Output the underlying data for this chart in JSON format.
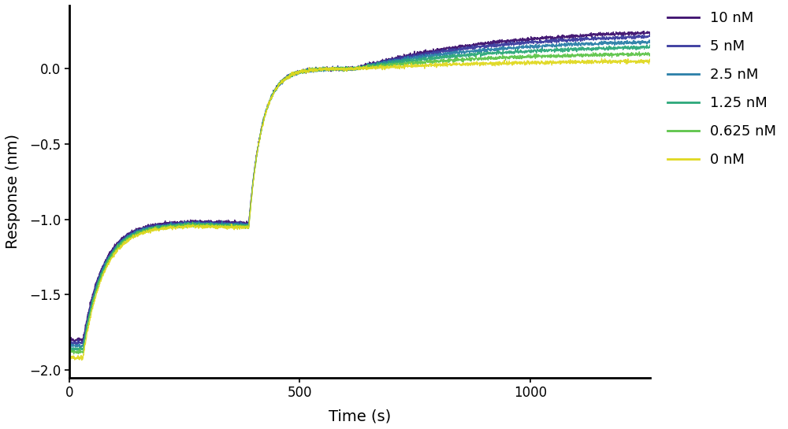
{
  "series": [
    {
      "label": "10 nM",
      "color": "#3d0f6e",
      "final_response": 0.27
    },
    {
      "label": "5 nM",
      "color": "#3a3a9e",
      "final_response": 0.24
    },
    {
      "label": "2.5 nM",
      "color": "#2a7fa8",
      "final_response": 0.2
    },
    {
      "label": "1.25 nM",
      "color": "#2ca87a",
      "final_response": 0.16
    },
    {
      "label": "0.625 nM",
      "color": "#5ec44a",
      "final_response": 0.11
    },
    {
      "label": "0 nM",
      "color": "#e0d820",
      "final_response": 0.055
    }
  ],
  "xlabel": "Time (s)",
  "ylabel": "Response (nm)",
  "xlim": [
    0,
    1260
  ],
  "ylim": [
    -2.05,
    0.42
  ],
  "yticks": [
    -2.0,
    -1.5,
    -1.0,
    -0.5,
    0.0
  ],
  "xticks": [
    0,
    500,
    1000
  ],
  "noise_amplitude": 0.006,
  "bg_color": "#ffffff",
  "p1_end": 30,
  "p2_end": 250,
  "p3_end": 390,
  "p4_end": 620,
  "p5_end": 1260,
  "phase1_start_val": -1.86,
  "phase3_plateau": -1.03
}
